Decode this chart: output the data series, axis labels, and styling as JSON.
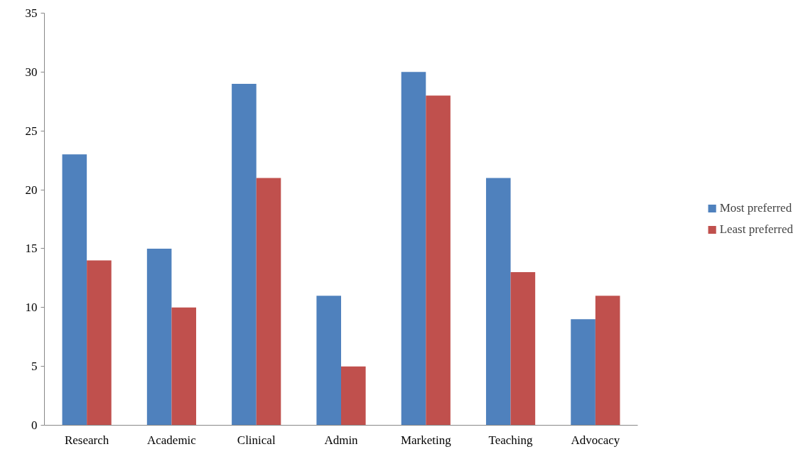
{
  "chart_data": {
    "type": "bar",
    "categories": [
      "Research",
      "Academic",
      "Clinical",
      "Admin",
      "Marketing",
      "Teaching",
      "Advocacy"
    ],
    "series": [
      {
        "name": "Most preferred",
        "color": "#4f81bd",
        "values": [
          23,
          15,
          29,
          11,
          30,
          21,
          9
        ]
      },
      {
        "name": "Least preferred",
        "color": "#c0504d",
        "values": [
          14,
          10,
          21,
          5,
          28,
          13,
          11
        ]
      }
    ],
    "ylim": [
      0,
      35
    ],
    "yticks": [
      0,
      5,
      10,
      15,
      20,
      25,
      30,
      35
    ],
    "grid": false,
    "legend": "right"
  }
}
